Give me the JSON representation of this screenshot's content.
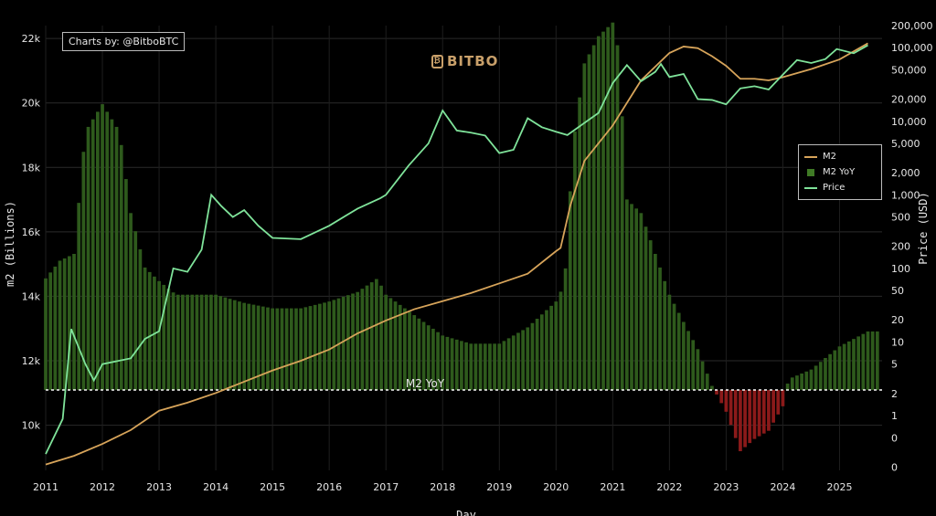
{
  "chart_data": {
    "type": "bar+line",
    "credit": "Charts by: @BitboBTC",
    "brand": "BITBO",
    "xlabel": "Day",
    "ylabel_left": "m2 (Billions)",
    "ylabel_right": "Price (USD)",
    "zero_line_label": "M2 YoY",
    "x_ticks": [
      "2011",
      "2012",
      "2013",
      "2014",
      "2015",
      "2016",
      "2017",
      "2018",
      "2019",
      "2020",
      "2021",
      "2022",
      "2023",
      "2024",
      "2025"
    ],
    "y_left_ticks": [
      "10k",
      "12k",
      "14k",
      "16k",
      "18k",
      "20k",
      "22k"
    ],
    "y_left_tick_values": [
      10000,
      12000,
      14000,
      16000,
      18000,
      20000,
      22000
    ],
    "y_right_ticks": [
      "0",
      "0",
      "1",
      "2",
      "5",
      "10",
      "20",
      "50",
      "100",
      "200",
      "500",
      "1,000",
      "2,000",
      "5,000",
      "10,000",
      "20,000",
      "50,000",
      "100,000",
      "200,000"
    ],
    "y_right_tick_values": [
      0.2,
      0.5,
      1,
      2,
      5,
      10,
      20,
      50,
      100,
      200,
      500,
      1000,
      2000,
      5000,
      10000,
      20000,
      50000,
      100000,
      200000
    ],
    "ylim_left": [
      8600,
      22400
    ],
    "ylim_right_log": [
      0.18,
      200000
    ],
    "xlim": [
      2011.0,
      2025.75
    ],
    "colors": {
      "m2": "#d7a45a",
      "yoy_pos": "#2e5a1c",
      "yoy_neg": "#8b1a1a",
      "price": "#7fe39a",
      "background": "#000000"
    },
    "legend": [
      "M2",
      "M2 YoY",
      "Price"
    ],
    "legend_position": "right",
    "series": [
      {
        "name": "M2",
        "points": [
          [
            2011.0,
            8780
          ],
          [
            2011.5,
            9050
          ],
          [
            2012.0,
            9420
          ],
          [
            2012.5,
            9850
          ],
          [
            2013.0,
            10450
          ],
          [
            2013.5,
            10700
          ],
          [
            2014.0,
            11000
          ],
          [
            2014.5,
            11350
          ],
          [
            2015.0,
            11700
          ],
          [
            2015.5,
            12000
          ],
          [
            2016.0,
            12350
          ],
          [
            2016.5,
            12850
          ],
          [
            2017.0,
            13250
          ],
          [
            2017.5,
            13600
          ],
          [
            2018.0,
            13850
          ],
          [
            2018.5,
            14100
          ],
          [
            2019.0,
            14400
          ],
          [
            2019.5,
            14700
          ],
          [
            2020.0,
            15400
          ],
          [
            2020.08,
            15500
          ],
          [
            2020.25,
            16800
          ],
          [
            2020.5,
            18200
          ],
          [
            2021.0,
            19300
          ],
          [
            2021.5,
            20700
          ],
          [
            2022.0,
            21550
          ],
          [
            2022.25,
            21750
          ],
          [
            2022.5,
            21700
          ],
          [
            2022.75,
            21450
          ],
          [
            2023.0,
            21150
          ],
          [
            2023.25,
            20750
          ],
          [
            2023.5,
            20750
          ],
          [
            2023.75,
            20700
          ],
          [
            2024.0,
            20800
          ],
          [
            2024.5,
            21050
          ],
          [
            2025.0,
            21350
          ],
          [
            2025.5,
            21850
          ]
        ]
      },
      {
        "name": "M2 YoY",
        "unit": "percent",
        "points": [
          [
            2011.0,
            8.2
          ],
          [
            2011.25,
            9.5
          ],
          [
            2011.5,
            10
          ],
          [
            2011.7,
            19
          ],
          [
            2012.0,
            21
          ],
          [
            2012.3,
            19
          ],
          [
            2012.5,
            13
          ],
          [
            2012.75,
            9
          ],
          [
            2013.0,
            8
          ],
          [
            2013.3,
            7
          ],
          [
            2013.6,
            7
          ],
          [
            2014.0,
            7
          ],
          [
            2014.5,
            6.4
          ],
          [
            2015.0,
            6.0
          ],
          [
            2015.5,
            6.0
          ],
          [
            2016.0,
            6.5
          ],
          [
            2016.5,
            7.2
          ],
          [
            2016.85,
            8.2
          ],
          [
            2017.0,
            7.0
          ],
          [
            2017.5,
            5.5
          ],
          [
            2018.0,
            4.0
          ],
          [
            2018.5,
            3.4
          ],
          [
            2019.0,
            3.4
          ],
          [
            2019.5,
            4.6
          ],
          [
            2020.0,
            6.5
          ],
          [
            2020.15,
            7.8
          ],
          [
            2020.3,
            18
          ],
          [
            2020.5,
            24
          ],
          [
            2020.75,
            26
          ],
          [
            2021.0,
            27
          ],
          [
            2021.1,
            25
          ],
          [
            2021.25,
            14
          ],
          [
            2021.5,
            13
          ],
          [
            2022.0,
            7
          ],
          [
            2022.5,
            3
          ],
          [
            2022.75,
            0.3
          ],
          [
            2023.0,
            -1.6
          ],
          [
            2023.25,
            -4.5
          ],
          [
            2023.5,
            -3.6
          ],
          [
            2023.75,
            -3.0
          ],
          [
            2024.0,
            -1.2
          ],
          [
            2024.1,
            0.8
          ],
          [
            2024.5,
            1.5
          ],
          [
            2025.0,
            3.2
          ],
          [
            2025.5,
            4.3
          ]
        ]
      },
      {
        "name": "Price",
        "unit": "USD",
        "points": [
          [
            2011.0,
            0.3
          ],
          [
            2011.3,
            0.9
          ],
          [
            2011.45,
            15
          ],
          [
            2011.7,
            5
          ],
          [
            2011.85,
            3
          ],
          [
            2012.0,
            5
          ],
          [
            2012.5,
            6
          ],
          [
            2012.75,
            11
          ],
          [
            2013.0,
            14
          ],
          [
            2013.25,
            100
          ],
          [
            2013.5,
            90
          ],
          [
            2013.75,
            180
          ],
          [
            2013.92,
            1000
          ],
          [
            2014.1,
            700
          ],
          [
            2014.3,
            500
          ],
          [
            2014.5,
            620
          ],
          [
            2014.75,
            380
          ],
          [
            2015.0,
            260
          ],
          [
            2015.5,
            250
          ],
          [
            2016.0,
            380
          ],
          [
            2016.5,
            650
          ],
          [
            2016.9,
            900
          ],
          [
            2017.0,
            1000
          ],
          [
            2017.4,
            2500
          ],
          [
            2017.75,
            5000
          ],
          [
            2018.0,
            14000
          ],
          [
            2018.25,
            7500
          ],
          [
            2018.5,
            7000
          ],
          [
            2018.75,
            6400
          ],
          [
            2019.0,
            3700
          ],
          [
            2019.25,
            4100
          ],
          [
            2019.5,
            11000
          ],
          [
            2019.75,
            8300
          ],
          [
            2020.0,
            7200
          ],
          [
            2020.2,
            6500
          ],
          [
            2020.5,
            9500
          ],
          [
            2020.75,
            13000
          ],
          [
            2021.0,
            33000
          ],
          [
            2021.25,
            58000
          ],
          [
            2021.5,
            35000
          ],
          [
            2021.75,
            47000
          ],
          [
            2021.85,
            60000
          ],
          [
            2022.0,
            40000
          ],
          [
            2022.25,
            44000
          ],
          [
            2022.5,
            20000
          ],
          [
            2022.75,
            19500
          ],
          [
            2023.0,
            17000
          ],
          [
            2023.25,
            28000
          ],
          [
            2023.5,
            30000
          ],
          [
            2023.75,
            27000
          ],
          [
            2024.0,
            43000
          ],
          [
            2024.25,
            68000
          ],
          [
            2024.5,
            62000
          ],
          [
            2024.75,
            70000
          ],
          [
            2024.95,
            96000
          ],
          [
            2025.25,
            84000
          ],
          [
            2025.5,
            108000
          ]
        ]
      }
    ]
  }
}
